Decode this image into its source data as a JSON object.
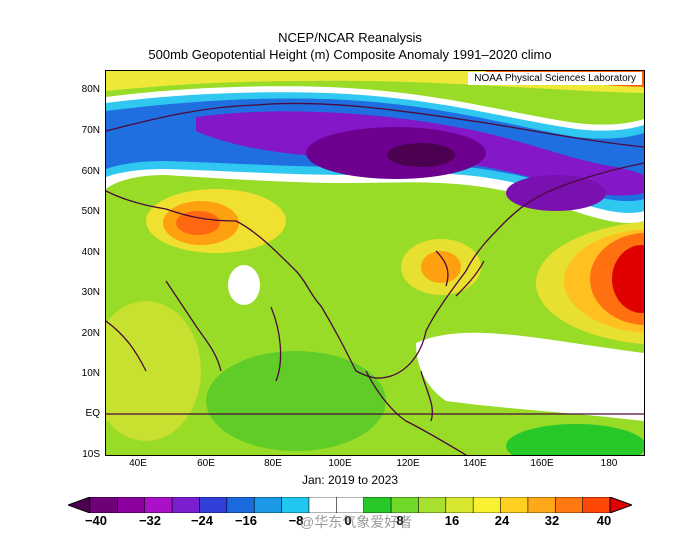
{
  "header": {
    "title": "NCEP/NCAR Reanalysis",
    "subtitle": "500mb Geopotential Height (m) Composite Anomaly 1991–2020 climo"
  },
  "map": {
    "credit": "NOAA Physical Sciences Laboratory",
    "period": "Jan: 2019 to 2023",
    "lat_labels": [
      "80N",
      "70N",
      "60N",
      "50N",
      "40N",
      "30N",
      "20N",
      "10N",
      "EQ",
      "10S"
    ],
    "lon_labels": [
      "40E",
      "60E",
      "80E",
      "100E",
      "120E",
      "140E",
      "160E",
      "180"
    ],
    "lon_range": [
      30,
      190
    ],
    "lat_range": [
      -10,
      85
    ]
  },
  "colorbar": {
    "labels": [
      "−40",
      "−32",
      "−24",
      "−16",
      "−8",
      "0",
      "8",
      "16",
      "24",
      "32",
      "40"
    ],
    "colors": [
      "#4b0050",
      "#6e0078",
      "#8c00a0",
      "#aa10c8",
      "#7a1ed0",
      "#2f3fd8",
      "#1c6ae0",
      "#1c9ae8",
      "#20c8f0",
      "#ffffff",
      "#ffffff",
      "#28c828",
      "#70d828",
      "#a8e030",
      "#d8e830",
      "#f8f030",
      "#ffd020",
      "#ffa818",
      "#ff7810",
      "#ff4808",
      "#e00000"
    ]
  },
  "watermark": "@华东气象爱好者"
}
